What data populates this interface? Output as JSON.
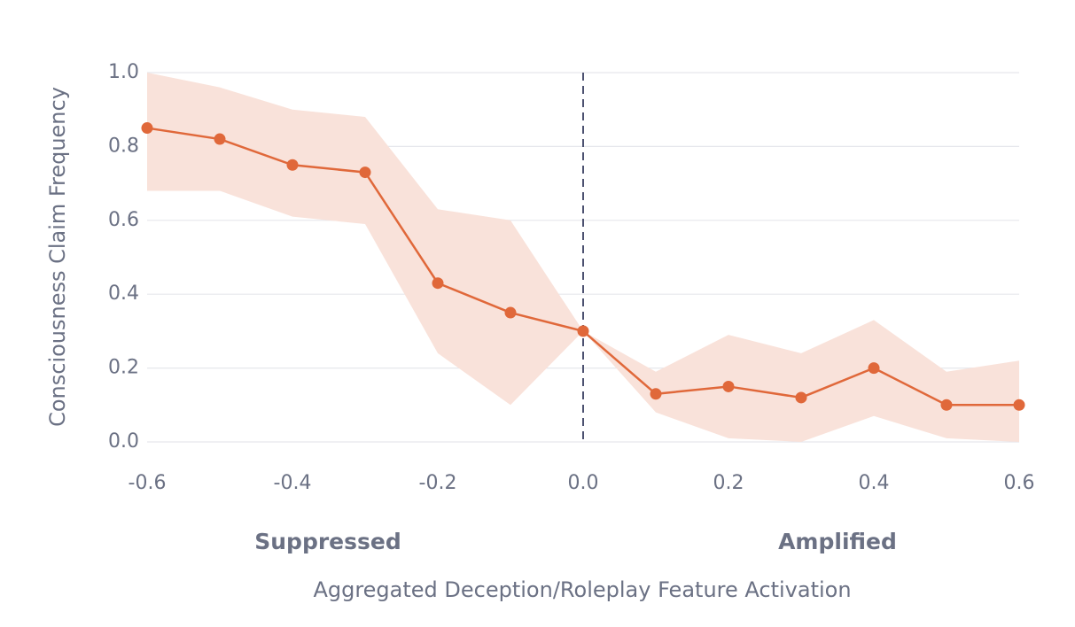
{
  "chart_data": {
    "type": "line",
    "x_label": "Aggregated Deception/Roleplay Feature Activation",
    "y_label": "Consciousness Claim Frequency",
    "annotations": [
      "Suppressed",
      "Amplified"
    ],
    "x": [
      -0.6,
      -0.5,
      -0.4,
      -0.3,
      -0.2,
      -0.1,
      0,
      0.1,
      0.2,
      0.3,
      0.4,
      0.5,
      0.6
    ],
    "values": [
      0.85,
      0.82,
      0.75,
      0.73,
      0.43,
      0.35,
      0.3,
      0.13,
      0.15,
      0.12,
      0.2,
      0.1,
      0.1
    ],
    "upper": [
      1.0,
      0.96,
      0.9,
      0.88,
      0.63,
      0.6,
      0.3,
      0.19,
      0.29,
      0.24,
      0.33,
      0.19,
      0.22
    ],
    "lower": [
      0.68,
      0.68,
      0.61,
      0.59,
      0.24,
      0.1,
      0.3,
      0.08,
      0.01,
      0.0,
      0.07,
      0.01,
      0.0
    ],
    "color": "#e0683a",
    "band_color": "#f9e2da",
    "vline": 0,
    "xlim": [
      -0.6,
      0.6
    ],
    "ylim": [
      0,
      1
    ],
    "xticks": [
      -0.6,
      -0.4,
      -0.2,
      {
        "value": 0,
        "label": "0.0"
      },
      0.2,
      0.4,
      0.6
    ],
    "yticks": [
      {
        "value": 0,
        "label": "0.0"
      },
      0.2,
      0.4,
      0.6,
      0.8,
      {
        "value": 1,
        "label": "1.0"
      }
    ],
    "grid": true
  }
}
